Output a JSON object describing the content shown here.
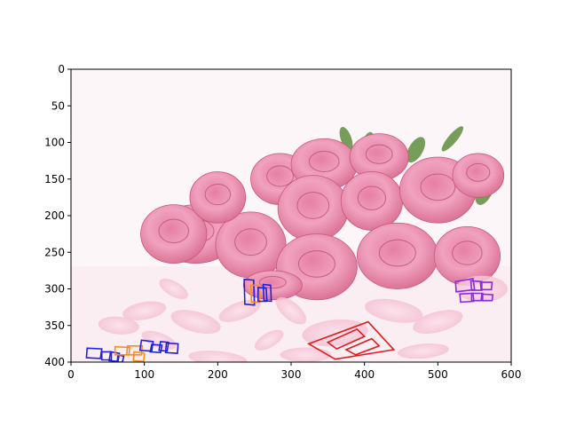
{
  "chart_data": {
    "type": "scatter",
    "kind": "image-with-text-detection-boxes",
    "xlim": [
      0,
      600
    ],
    "ylim": [
      400,
      0
    ],
    "y_inverted": true,
    "x_ticks": [
      "0",
      "100",
      "200",
      "300",
      "400",
      "500",
      "600"
    ],
    "y_ticks": [
      "0",
      "50",
      "100",
      "150",
      "200",
      "250",
      "300",
      "350",
      "400"
    ],
    "grid": false,
    "legend": "none",
    "background": "photo of pink roses and scattered petals on a white surface",
    "boxes": [
      {
        "color": "#2020e0",
        "points": [
          [
            22,
            381
          ],
          [
            42,
            382
          ],
          [
            40,
            395
          ],
          [
            21,
            394
          ]
        ]
      },
      {
        "color": "#2020e0",
        "points": [
          [
            42,
            386
          ],
          [
            55,
            386
          ],
          [
            55,
            397
          ],
          [
            42,
            397
          ]
        ]
      },
      {
        "color": "#2020e0",
        "points": [
          [
            54,
            386
          ],
          [
            66,
            388
          ],
          [
            64,
            399
          ],
          [
            52,
            398
          ]
        ]
      },
      {
        "color": "#2020e0",
        "points": [
          [
            64,
            390
          ],
          [
            72,
            392
          ],
          [
            70,
            400
          ],
          [
            63,
            400
          ]
        ]
      },
      {
        "color": "#ff8c1a",
        "points": [
          [
            60,
            379
          ],
          [
            80,
            380
          ],
          [
            79,
            390
          ],
          [
            60,
            390
          ]
        ]
      },
      {
        "color": "#ff8c1a",
        "points": [
          [
            77,
            378
          ],
          [
            97,
            378
          ],
          [
            96,
            390
          ],
          [
            76,
            390
          ]
        ]
      },
      {
        "color": "#ff8c1a",
        "points": [
          [
            86,
            386
          ],
          [
            100,
            388
          ],
          [
            99,
            399
          ],
          [
            85,
            398
          ]
        ]
      },
      {
        "color": "#2020e0",
        "points": [
          [
            96,
            370
          ],
          [
            112,
            372
          ],
          [
            110,
            385
          ],
          [
            94,
            384
          ]
        ]
      },
      {
        "color": "#2020e0",
        "points": [
          [
            110,
            376
          ],
          [
            124,
            377
          ],
          [
            122,
            387
          ],
          [
            108,
            386
          ]
        ]
      },
      {
        "color": "#2020e0",
        "points": [
          [
            122,
            372
          ],
          [
            133,
            373
          ],
          [
            131,
            385
          ],
          [
            120,
            384
          ]
        ]
      },
      {
        "color": "#2020e0",
        "points": [
          [
            130,
            374
          ],
          [
            146,
            375
          ],
          [
            145,
            388
          ],
          [
            129,
            387
          ]
        ]
      },
      {
        "color": "#2020e0",
        "points": [
          [
            236,
            287
          ],
          [
            249,
            288
          ],
          [
            250,
            322
          ],
          [
            237,
            321
          ]
        ]
      },
      {
        "color": "#ff8c1a",
        "points": [
          [
            245,
            295
          ],
          [
            256,
            295
          ],
          [
            257,
            318
          ],
          [
            246,
            318
          ]
        ]
      },
      {
        "color": "#2020e0",
        "points": [
          [
            255,
            298
          ],
          [
            266,
            299
          ],
          [
            267,
            317
          ],
          [
            255,
            317
          ]
        ]
      },
      {
        "color": "#2020e0",
        "points": [
          [
            262,
            294
          ],
          [
            272,
            295
          ],
          [
            273,
            317
          ],
          [
            263,
            316
          ]
        ]
      },
      {
        "color": "#e01b1b",
        "points": [
          [
            324,
            375
          ],
          [
            405,
            345
          ],
          [
            440,
            383
          ],
          [
            360,
            396
          ]
        ]
      },
      {
        "color": "#e01b1b",
        "points": [
          [
            350,
            373
          ],
          [
            390,
            355
          ],
          [
            400,
            365
          ],
          [
            362,
            382
          ]
        ]
      },
      {
        "color": "#e01b1b",
        "points": [
          [
            375,
            383
          ],
          [
            410,
            368
          ],
          [
            420,
            378
          ],
          [
            388,
            390
          ]
        ]
      },
      {
        "color": "#8a2be2",
        "points": [
          [
            524,
            290
          ],
          [
            548,
            286
          ],
          [
            550,
            301
          ],
          [
            525,
            304
          ]
        ]
      },
      {
        "color": "#8a2be2",
        "points": [
          [
            545,
            289
          ],
          [
            560,
            290
          ],
          [
            560,
            302
          ],
          [
            546,
            302
          ]
        ]
      },
      {
        "color": "#8a2be2",
        "points": [
          [
            558,
            291
          ],
          [
            574,
            291
          ],
          [
            573,
            301
          ],
          [
            559,
            301
          ]
        ]
      },
      {
        "color": "#8a2be2",
        "points": [
          [
            530,
            307
          ],
          [
            548,
            306
          ],
          [
            549,
            317
          ],
          [
            531,
            318
          ]
        ]
      },
      {
        "color": "#8a2be2",
        "points": [
          [
            546,
            306
          ],
          [
            561,
            306
          ],
          [
            561,
            316
          ],
          [
            546,
            316
          ]
        ]
      },
      {
        "color": "#8a2be2",
        "points": [
          [
            560,
            307
          ],
          [
            575,
            308
          ],
          [
            574,
            316
          ],
          [
            559,
            316
          ]
        ]
      }
    ]
  }
}
